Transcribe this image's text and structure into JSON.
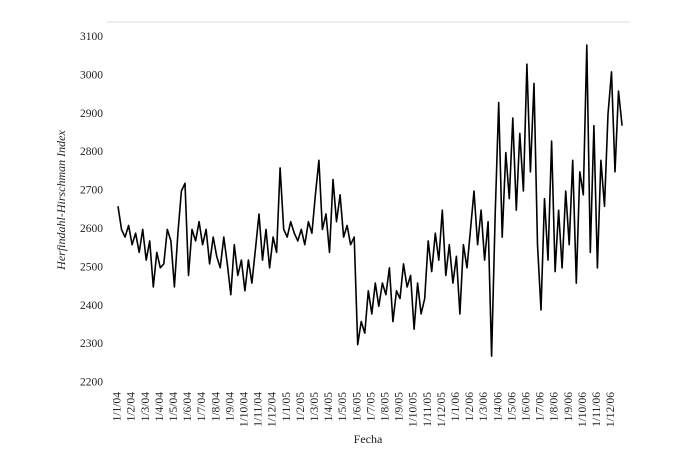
{
  "chart_data": {
    "type": "line",
    "x_label": "Fecha",
    "y_label": "Herfindahl-Hirschman Index",
    "color": "#000000",
    "ylim": [
      2200,
      3140
    ],
    "yticks": [
      2200,
      2300,
      2400,
      2500,
      2600,
      2700,
      2800,
      2900,
      3000,
      3100
    ],
    "categories": [
      "1/1/04",
      null,
      null,
      null,
      "1/2/04",
      null,
      null,
      null,
      "1/3/04",
      null,
      null,
      null,
      "1/4/04",
      null,
      null,
      null,
      "1/5/04",
      null,
      null,
      null,
      "1/6/04",
      null,
      null,
      null,
      "1/7/04",
      null,
      null,
      null,
      "1/8/04",
      null,
      null,
      null,
      "1/9/04",
      null,
      null,
      null,
      "1/10/04",
      null,
      null,
      null,
      "1/11/04",
      null,
      null,
      null,
      "1/12/04",
      null,
      null,
      null,
      "1/1/05",
      null,
      null,
      null,
      "1/2/05",
      null,
      null,
      null,
      "1/3/05",
      null,
      null,
      null,
      "1/4/05",
      null,
      null,
      null,
      "1/5/05",
      null,
      null,
      null,
      "1/6/05",
      null,
      null,
      null,
      "1/7/05",
      null,
      null,
      null,
      "1/8/05",
      null,
      null,
      null,
      "1/9/05",
      null,
      null,
      null,
      "1/10/05",
      null,
      null,
      null,
      "1/11/05",
      null,
      null,
      null,
      "1/12/05",
      null,
      null,
      null,
      "1/1/06",
      null,
      null,
      null,
      "1/2/06",
      null,
      null,
      null,
      "1/3/06",
      null,
      null,
      null,
      "1/4/06",
      null,
      null,
      null,
      "1/5/06",
      null,
      null,
      null,
      "1/6/06",
      null,
      null,
      null,
      "1/7/06",
      null,
      null,
      null,
      "1/8/06",
      null,
      null,
      null,
      "1/9/06",
      null,
      null,
      null,
      "1/10/06",
      null,
      null,
      null,
      "1/11/06",
      null,
      null,
      null,
      "1/12/06",
      null,
      null,
      null
    ],
    "values": [
      2660,
      2600,
      2580,
      2610,
      2560,
      2590,
      2540,
      2600,
      2520,
      2570,
      2450,
      2540,
      2500,
      2510,
      2600,
      2570,
      2450,
      2590,
      2700,
      2720,
      2480,
      2600,
      2570,
      2620,
      2560,
      2600,
      2510,
      2580,
      2530,
      2500,
      2580,
      2510,
      2430,
      2560,
      2480,
      2520,
      2440,
      2520,
      2460,
      2550,
      2640,
      2520,
      2600,
      2500,
      2580,
      2540,
      2760,
      2600,
      2580,
      2620,
      2590,
      2570,
      2600,
      2560,
      2620,
      2590,
      2690,
      2780,
      2600,
      2640,
      2540,
      2730,
      2620,
      2690,
      2580,
      2610,
      2560,
      2580,
      2300,
      2360,
      2330,
      2440,
      2380,
      2460,
      2400,
      2460,
      2430,
      2500,
      2360,
      2440,
      2420,
      2510,
      2450,
      2480,
      2340,
      2460,
      2380,
      2420,
      2570,
      2490,
      2590,
      2520,
      2650,
      2480,
      2560,
      2460,
      2530,
      2380,
      2560,
      2500,
      2600,
      2700,
      2560,
      2650,
      2520,
      2620,
      2270,
      2640,
      2930,
      2580,
      2800,
      2680,
      2890,
      2650,
      2850,
      2700,
      3030,
      2750,
      2980,
      2560,
      2390,
      2680,
      2520,
      2830,
      2490,
      2650,
      2500,
      2700,
      2560,
      2780,
      2460,
      2750,
      2690,
      3080,
      2540,
      2870,
      2500,
      2780,
      2660,
      2900,
      3010,
      2750,
      2960,
      2870
    ]
  }
}
